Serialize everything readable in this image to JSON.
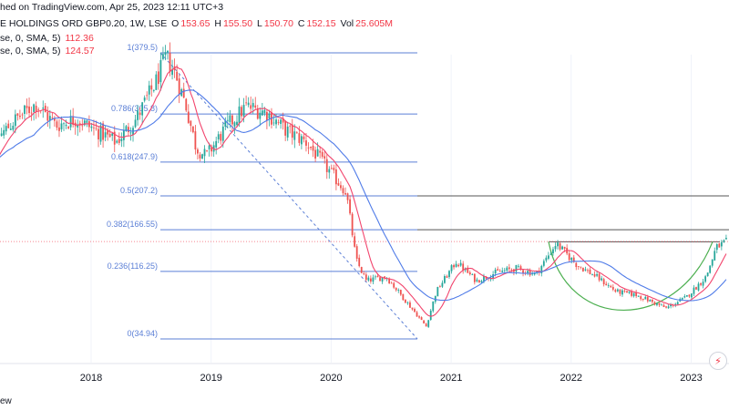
{
  "header": {
    "published": "hed on TradingView.com, Apr 25, 2023 12:11 UTC+3",
    "symbol": "E HOLDINGS ORD GBP0.20, 1W, LSE",
    "ohlc": [
      {
        "label": "O",
        "value": "153.65"
      },
      {
        "label": "H",
        "value": "155.50"
      },
      {
        "label": "L",
        "value": "150.70"
      },
      {
        "label": "C",
        "value": "152.15"
      },
      {
        "label": "Vol",
        "value": "25.605M"
      }
    ],
    "ma1_label": "se, 0, SMA, 5)",
    "ma1_value": "112.36",
    "ma2_label": "se, 0, SMA, 5)",
    "ma2_value": "124.57"
  },
  "footer": {
    "text": "ew"
  },
  "colors": {
    "up": "#26a69a",
    "down": "#ef5350",
    "ma_fast": "#f2456d",
    "ma_slow": "#4f7be8",
    "fib": "#5b7fd6",
    "price_line": "#f23645",
    "level": "#555555",
    "cup": "#4caf50"
  },
  "chart_data": {
    "type": "candlestick",
    "x_ticks": [
      "2018",
      "2019",
      "2020",
      "2021",
      "2022",
      "2023"
    ],
    "fib_levels": [
      {
        "ratio": "1",
        "price": 379.5,
        "label": "1(379.5)"
      },
      {
        "ratio": "0.786",
        "price": 305.8,
        "label": "0.786(305.8)"
      },
      {
        "ratio": "0.618",
        "price": 247.9,
        "label": "0.618(247.9)"
      },
      {
        "ratio": "0.5",
        "price": 207.2,
        "label": "0.5(207.2)"
      },
      {
        "ratio": "0.382",
        "price": 166.55,
        "label": "0.382(166.55)"
      },
      {
        "ratio": "0.236",
        "price": 116.25,
        "label": "0.236(116.25)"
      },
      {
        "ratio": "0",
        "price": 34.94,
        "label": "0(34.94)"
      }
    ],
    "horizontal_levels": [
      207.2,
      166.55
    ],
    "resistance_level": 152,
    "last_close": 152.15,
    "path": [
      [
        "2017-01",
        225
      ],
      [
        "2017-03",
        275
      ],
      [
        "2017-05",
        300
      ],
      [
        "2017-07",
        318
      ],
      [
        "2017-09",
        292
      ],
      [
        "2017-11",
        300
      ],
      [
        "2018-01",
        286
      ],
      [
        "2018-03",
        272
      ],
      [
        "2018-05",
        300
      ],
      [
        "2018-07",
        345
      ],
      [
        "2018-08",
        375
      ],
      [
        "2018-09",
        352
      ],
      [
        "2018-10",
        315
      ],
      [
        "2018-11",
        265
      ],
      [
        "2018-12",
        255
      ],
      [
        "2019-02",
        290
      ],
      [
        "2019-04",
        315
      ],
      [
        "2019-06",
        308
      ],
      [
        "2019-08",
        286
      ],
      [
        "2019-10",
        272
      ],
      [
        "2019-12",
        242
      ],
      [
        "2020-02",
        212
      ],
      [
        "2020-03",
        130
      ],
      [
        "2020-04",
        105
      ],
      [
        "2020-06",
        110
      ],
      [
        "2020-08",
        80
      ],
      [
        "2020-10",
        50
      ],
      [
        "2020-11",
        92
      ],
      [
        "2021-01",
        128
      ],
      [
        "2021-03",
        105
      ],
      [
        "2021-05",
        115
      ],
      [
        "2021-07",
        120
      ],
      [
        "2021-09",
        113
      ],
      [
        "2021-11",
        150
      ],
      [
        "2022-01",
        125
      ],
      [
        "2022-03",
        110
      ],
      [
        "2022-05",
        92
      ],
      [
        "2022-07",
        88
      ],
      [
        "2022-10",
        72
      ],
      [
        "2022-12",
        85
      ],
      [
        "2023-02",
        110
      ],
      [
        "2023-03",
        145
      ],
      [
        "2023-04",
        152
      ]
    ]
  }
}
